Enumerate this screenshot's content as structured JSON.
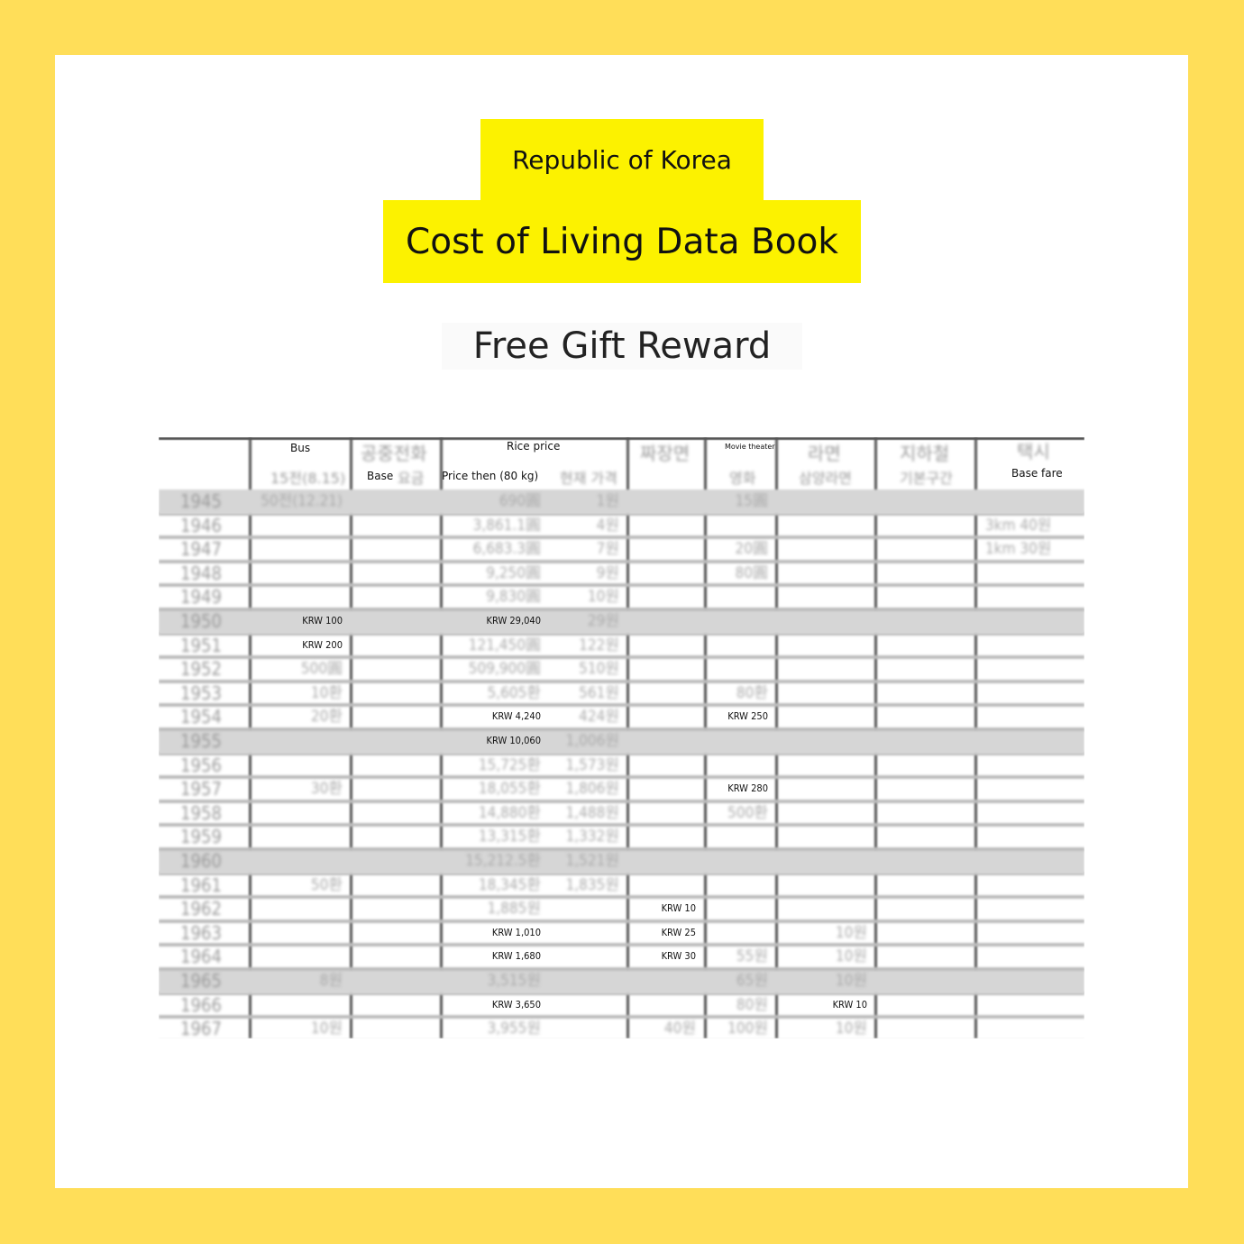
{
  "colors": {
    "frame": "#ffde59",
    "title_box": "#fcf200",
    "shaded_row": "#d6d6d6"
  },
  "title": {
    "line1": "Republic of Korea",
    "line2": "Cost of Living Data Book"
  },
  "subtitle": "Free Gift Reward",
  "table": {
    "headers": {
      "bus": "Bus",
      "bus_sub": "15전(8.15)",
      "phone": "공중전화",
      "phone_base": "Base",
      "phone_sub": "요금",
      "rice": "Rice price",
      "rice_then": "Price then (80 kg)",
      "rice_now": "현재 가격",
      "jajang": "짜장면",
      "movie": "Movie theater",
      "movie_sub": "영화",
      "ramen": "라면",
      "ramen_sub": "삼양라면",
      "subway": "지하철",
      "subway_sub": "기본구간",
      "taxi": "택시",
      "taxi_sub": "Base fare"
    },
    "rows": [
      {
        "year": "1945",
        "bus": "50전(12.21)",
        "rice_then": "690圓",
        "rice_now": "1원",
        "movie": "15圓"
      },
      {
        "year": "1946",
        "rice_then": "3,861.1圓",
        "rice_now": "4원",
        "taxi": "3km     40원"
      },
      {
        "year": "1947",
        "rice_then": "6,683.3圓",
        "rice_now": "7원",
        "movie": "20圓",
        "taxi": "1km     30원"
      },
      {
        "year": "1948",
        "rice_then": "9,250圓",
        "rice_now": "9원",
        "movie": "80圓"
      },
      {
        "year": "1949",
        "rice_then": "9,830圓",
        "rice_now": "10원"
      },
      {
        "year": "1950",
        "bus": "KRW 100",
        "rice_then": "KRW 29,040",
        "rice_now": "29원"
      },
      {
        "year": "1951",
        "bus": "KRW 200",
        "rice_then": "121,450圓",
        "rice_now": "122원"
      },
      {
        "year": "1952",
        "bus": "500圓",
        "rice_then": "509,900圓",
        "rice_now": "510원"
      },
      {
        "year": "1953",
        "bus": "10환",
        "rice_then": "5,605환",
        "rice_now": "561원",
        "movie": "80환"
      },
      {
        "year": "1954",
        "bus": "20환",
        "rice_then": "KRW 4,240",
        "rice_now": "424원",
        "movie": "KRW 250"
      },
      {
        "year": "1955",
        "rice_then": "KRW 10,060",
        "rice_now": "1,006원"
      },
      {
        "year": "1956",
        "rice_then": "15,725환",
        "rice_now": "1,573원"
      },
      {
        "year": "1957",
        "bus": "30환",
        "rice_then": "18,055환",
        "rice_now": "1,806원",
        "movie": "KRW 280"
      },
      {
        "year": "1958",
        "rice_then": "14,880환",
        "rice_now": "1,488원",
        "movie": "500환"
      },
      {
        "year": "1959",
        "rice_then": "13,315환",
        "rice_now": "1,332원"
      },
      {
        "year": "1960",
        "rice_then": "15,212.5환",
        "rice_now": "1,521원"
      },
      {
        "year": "1961",
        "bus": "50환",
        "rice_then": "18,345환",
        "rice_now": "1,835원"
      },
      {
        "year": "1962",
        "rice_then": "1,885원",
        "jajang": "KRW 10"
      },
      {
        "year": "1963",
        "rice_then": "KRW 1,010",
        "jajang": "KRW 25",
        "ramen": "10원"
      },
      {
        "year": "1964",
        "rice_then": "KRW 1,680",
        "jajang": "KRW 30",
        "movie": "55원",
        "ramen": "10원"
      },
      {
        "year": "1965",
        "bus": "8원",
        "rice_then": "3,515원",
        "movie": "65원",
        "ramen": "10원"
      },
      {
        "year": "1966",
        "rice_then": "KRW 3,650",
        "movie": "80원",
        "ramen": "KRW 10"
      },
      {
        "year": "1967",
        "bus": "10원",
        "rice_then": "3,955원",
        "jajang": "40원",
        "movie": "100원",
        "ramen": "10원"
      }
    ]
  }
}
